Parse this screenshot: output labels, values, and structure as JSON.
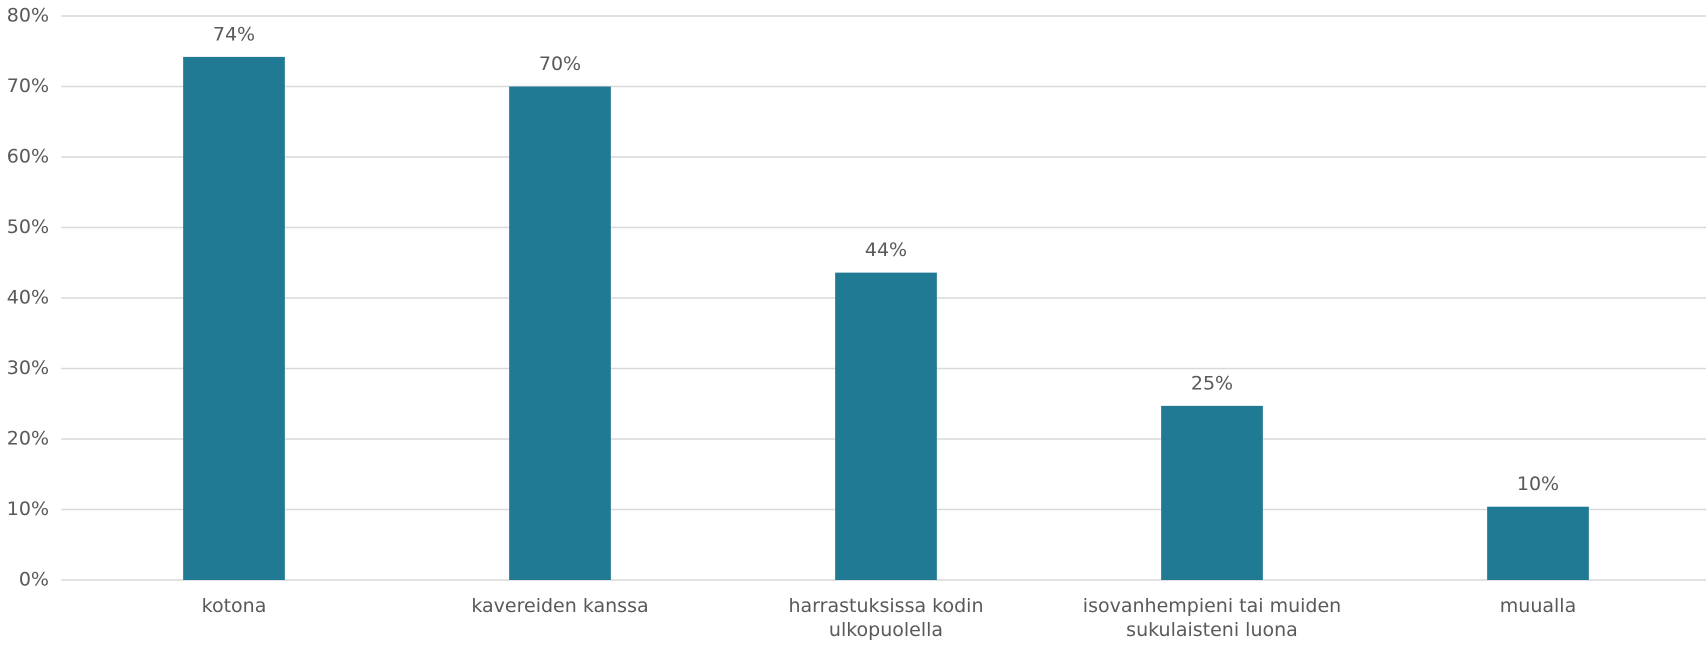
{
  "chart_data": {
    "type": "bar",
    "categories": [
      "kotona",
      "kavereiden kanssa",
      "harrastuksissa kodin ulkopuolella",
      "isovanhempieni tai muiden sukulaisteni luona",
      "muualla"
    ],
    "values": [
      74.2,
      70,
      43.6,
      24.7,
      10.4
    ],
    "value_labels": [
      "74%",
      "70%",
      "44%",
      "25%",
      "10%"
    ],
    "color": "#217a94",
    "ylim": [
      0,
      80
    ],
    "yticks": [
      {
        "value": 0,
        "label": "0%"
      },
      {
        "value": 10,
        "label": "10%"
      },
      {
        "value": 20,
        "label": "20%"
      },
      {
        "value": 30,
        "label": "30%"
      },
      {
        "value": 40,
        "label": "40%"
      },
      {
        "value": 50,
        "label": "50%"
      },
      {
        "value": 60,
        "label": "60%"
      },
      {
        "value": 70,
        "label": "70%"
      },
      {
        "value": 80,
        "label": "80%"
      }
    ],
    "grid": true
  }
}
